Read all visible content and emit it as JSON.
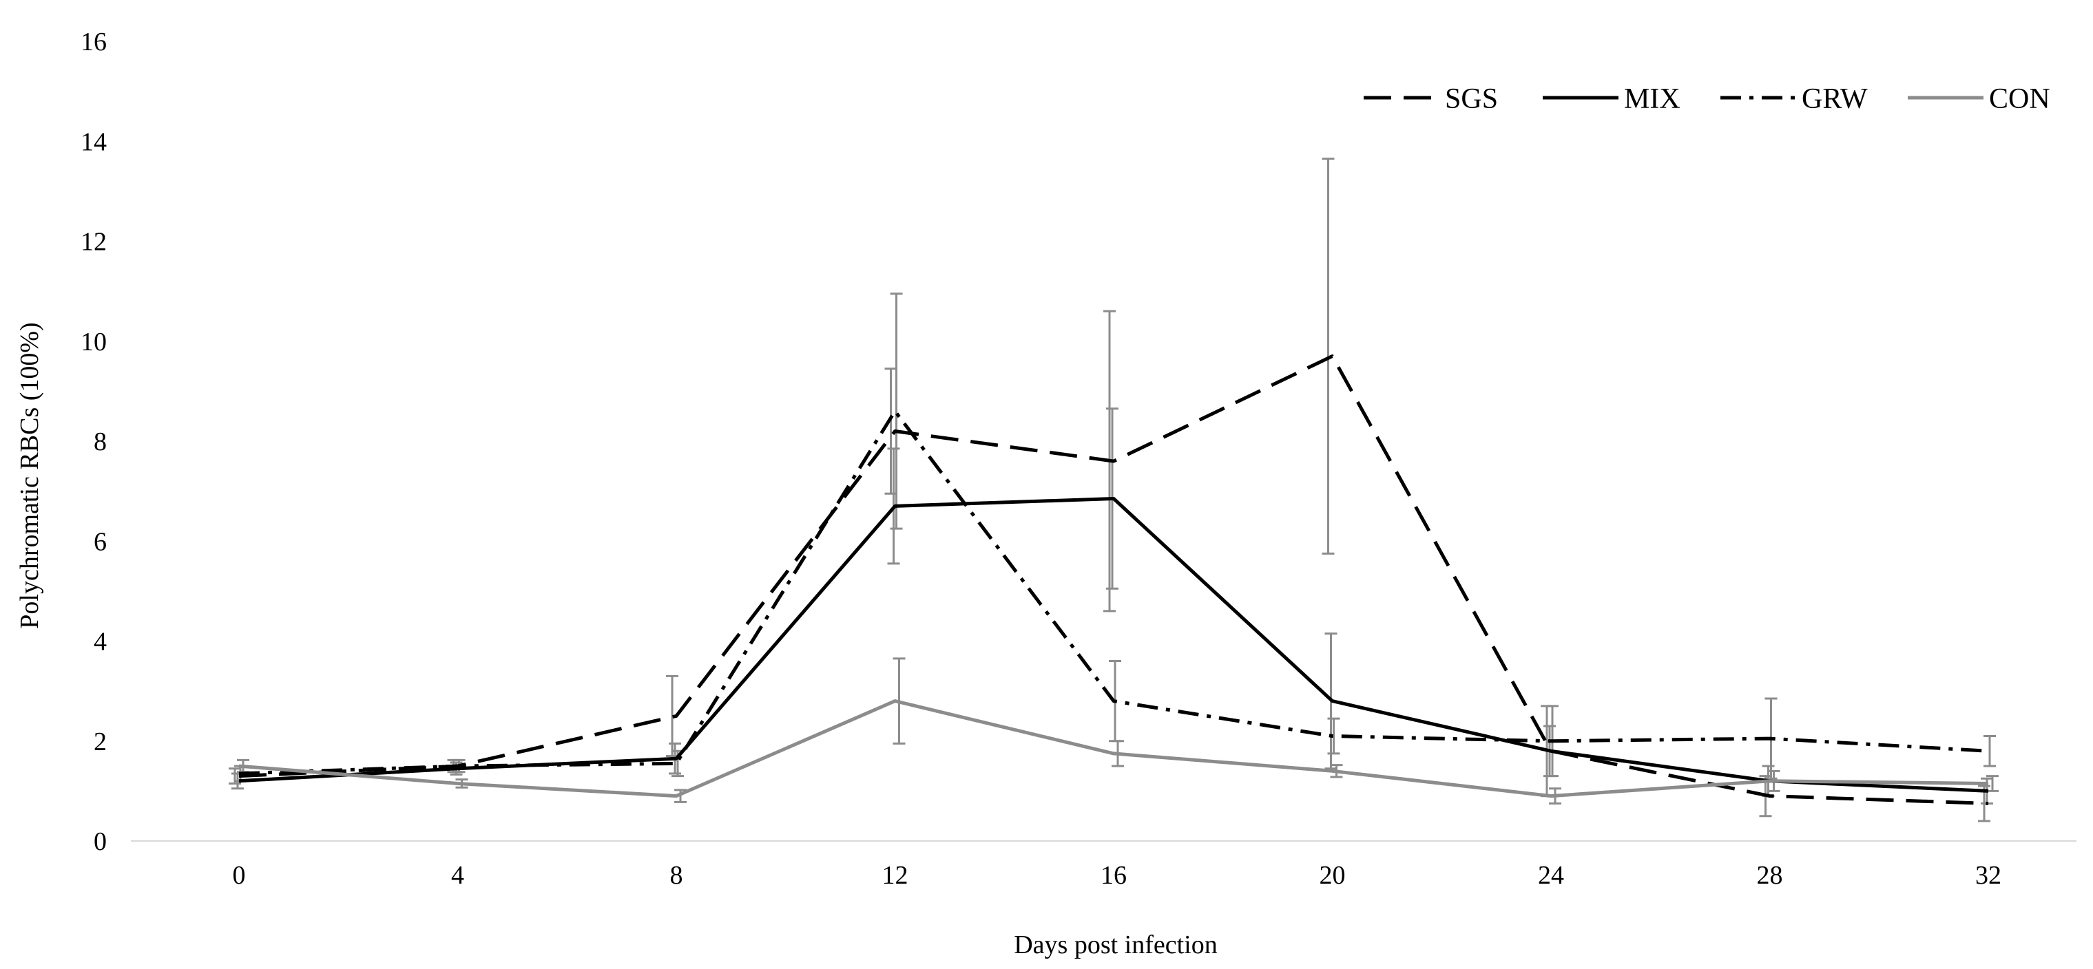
{
  "chart_data": {
    "type": "line",
    "title": "",
    "xlabel": "Days post infection",
    "ylabel": "Polychromatic RBCs (100%)",
    "x": [
      0,
      4,
      8,
      12,
      16,
      20,
      24,
      28,
      32
    ],
    "xticks": [
      "0",
      "4",
      "8",
      "12",
      "16",
      "20",
      "24",
      "28",
      "32"
    ],
    "yticks": [
      "0",
      "2",
      "4",
      "6",
      "8",
      "10",
      "12",
      "14",
      "16"
    ],
    "ylim": [
      0,
      16
    ],
    "grid": false,
    "legend_position": "top-right",
    "series": [
      {
        "name": "SGS",
        "style": "dashed",
        "color": "#000000",
        "values": [
          1.3,
          1.5,
          2.5,
          8.2,
          7.6,
          9.7,
          1.8,
          0.9,
          0.75
        ],
        "errors": [
          0.15,
          0.12,
          0.8,
          1.25,
          3.0,
          3.95,
          0.9,
          0.4,
          0.35
        ]
      },
      {
        "name": "MIX",
        "style": "solid",
        "color": "#000000",
        "values": [
          1.2,
          1.45,
          1.65,
          6.7,
          6.85,
          2.8,
          1.8,
          1.2,
          1.0
        ],
        "errors": [
          0.15,
          0.12,
          0.3,
          1.15,
          1.8,
          1.35,
          0.5,
          0.3,
          0.25
        ]
      },
      {
        "name": "GRW",
        "style": "dashdot",
        "color": "#000000",
        "values": [
          1.35,
          1.5,
          1.55,
          8.6,
          2.8,
          2.1,
          2.0,
          2.05,
          1.8
        ],
        "errors": [
          0.15,
          0.12,
          0.25,
          2.35,
          0.8,
          0.35,
          0.7,
          0.8,
          0.3
        ]
      },
      {
        "name": "CON",
        "style": "solid",
        "color": "#8c8c8c",
        "values": [
          1.5,
          1.15,
          0.9,
          2.8,
          1.75,
          1.4,
          0.9,
          1.2,
          1.15
        ],
        "errors": [
          0.12,
          0.08,
          0.12,
          0.85,
          0.25,
          0.12,
          0.15,
          0.2,
          0.15
        ]
      }
    ]
  }
}
